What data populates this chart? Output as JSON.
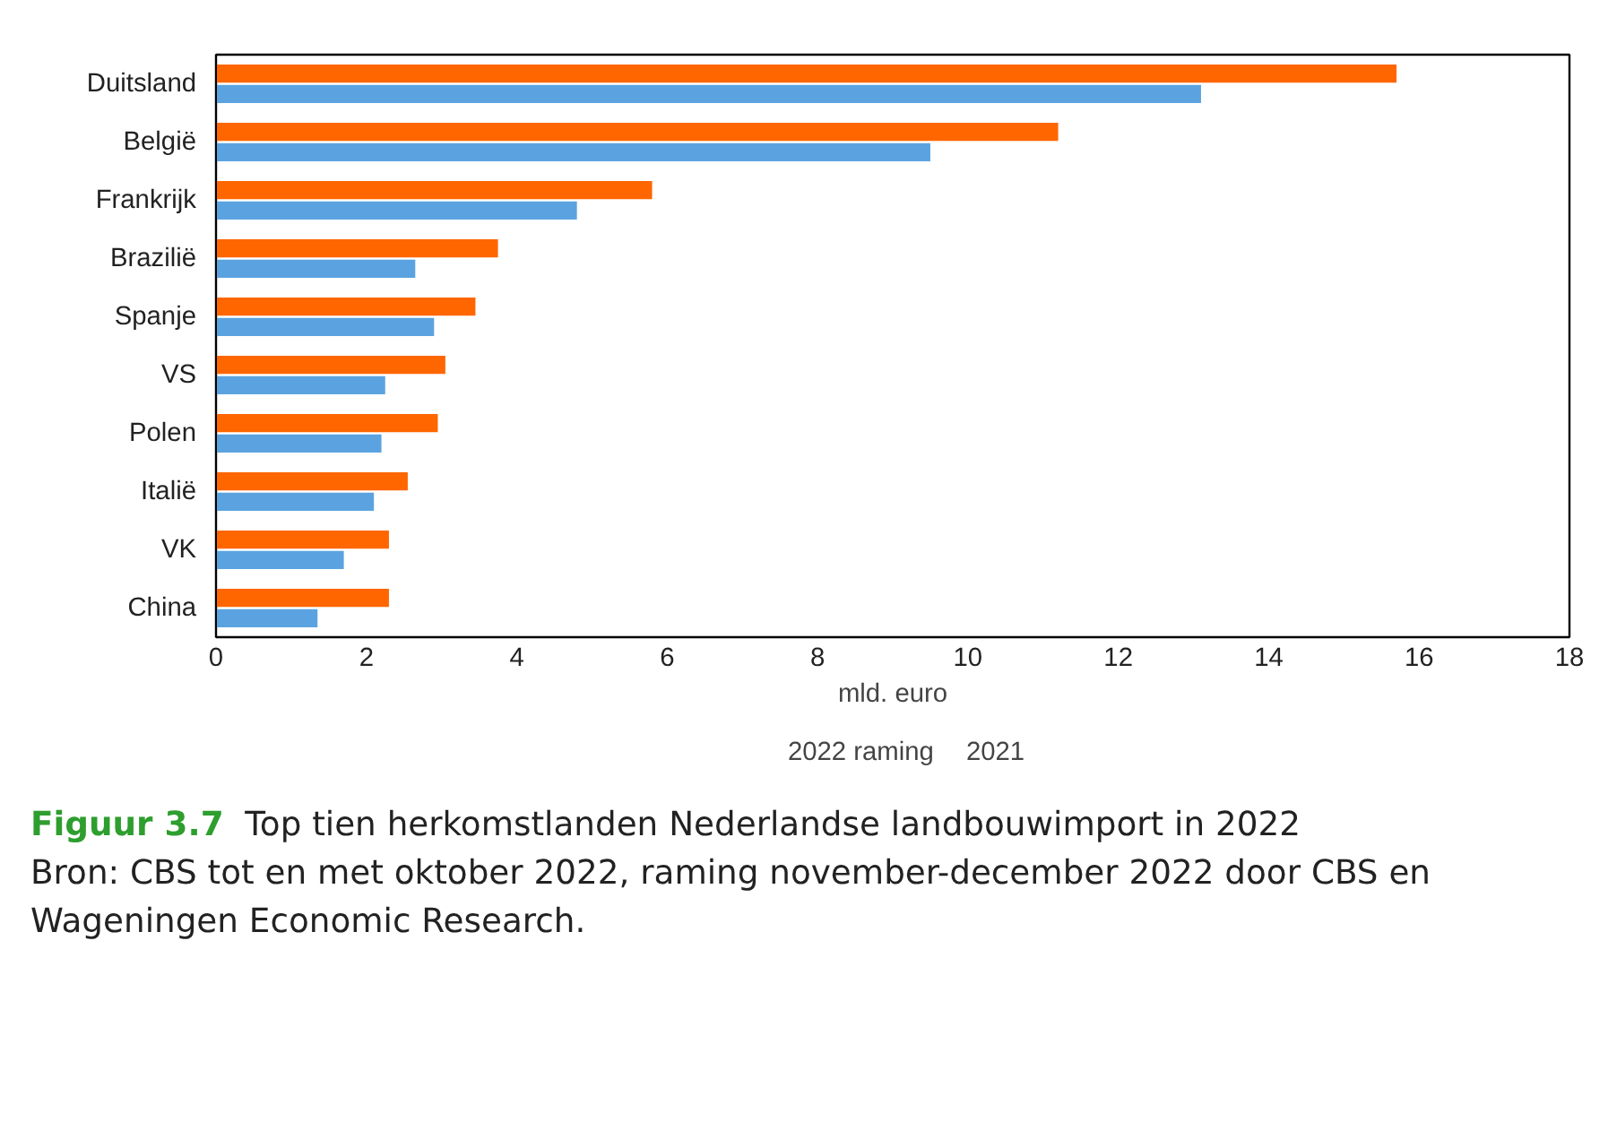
{
  "chart_data": {
    "type": "bar",
    "orientation": "horizontal",
    "title": "Figuur 3.7",
    "subtitle": "Top tien herkomstlanden Nederlandse landbouwimport in 2022",
    "xlabel": "mld. euro",
    "categories": [
      "Duitsland",
      "België",
      "Frankrijk",
      "Brazilië",
      "Spanje",
      "VS",
      "Polen",
      "Italië",
      "VK",
      "China"
    ],
    "series": [
      {
        "name": "2022 raming",
        "color": "#ff6600",
        "values": [
          15.7,
          11.2,
          5.8,
          3.75,
          3.45,
          3.05,
          2.95,
          2.55,
          2.3,
          2.3
        ]
      },
      {
        "name": "2021",
        "color": "#5ba3e0",
        "values": [
          13.1,
          9.5,
          4.8,
          2.65,
          2.9,
          2.25,
          2.2,
          2.1,
          1.7,
          1.35
        ]
      }
    ],
    "xlim": [
      0,
      18
    ],
    "xticks": [
      0,
      2,
      4,
      6,
      8,
      10,
      12,
      14,
      16,
      18
    ],
    "grid": false,
    "legend": "bottom",
    "annotations": [
      "Bron: CBS tot en met oktober 2022, raming november-december 2022 door CBS en Wageningen Economic Research."
    ]
  }
}
